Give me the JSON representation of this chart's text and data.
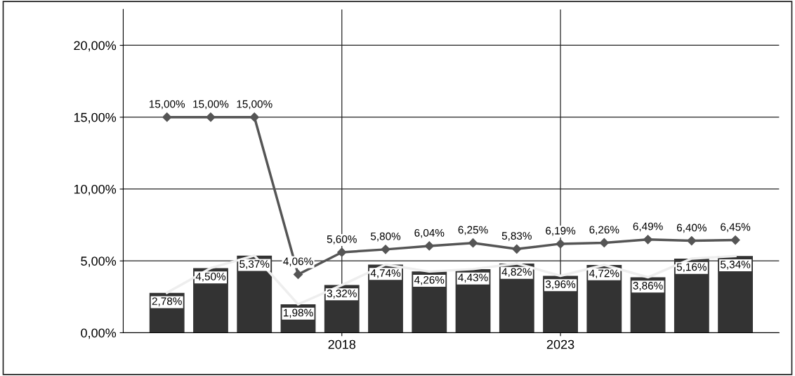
{
  "chart_data": {
    "type": "bar",
    "x": [
      2014,
      2015,
      2016,
      2017,
      2018,
      2019,
      2020,
      2021,
      2022,
      2023,
      2024,
      2025,
      2026,
      2027
    ],
    "series": [
      {
        "color": "#333333",
        "values": [
          2.78,
          4.5,
          5.37,
          1.98,
          3.32,
          4.74,
          4.26,
          4.43,
          4.82,
          3.96,
          4.72,
          3.86,
          5.16,
          5.34
        ],
        "value_labels": [
          "2,78%",
          "4,50%",
          "5,37%",
          "1,98%",
          "3,32%",
          "4,74%",
          "4,26%",
          "4,43%",
          "4,82%",
          "3,96%",
          "4,72%",
          "3,86%",
          "5,16%",
          "5,34%"
        ]
      },
      {
        "type": "line",
        "color": "#eeeeee",
        "values": [
          2.78,
          4.5,
          5.37,
          1.98,
          3.32,
          4.74,
          4.26,
          4.43,
          4.82,
          3.96,
          4.72,
          3.86,
          5.16,
          5.34
        ]
      },
      {
        "type": "line",
        "color": "#555555",
        "marker": "diamond",
        "values": [
          15.0,
          15.0,
          15.0,
          4.06,
          5.6,
          5.8,
          6.04,
          6.25,
          5.83,
          6.19,
          6.26,
          6.49,
          6.4,
          6.45
        ],
        "value_labels": [
          "15,00%",
          "15,00%",
          "15,00%",
          "4,06%",
          "5,60%",
          "5,80%",
          "6,04%",
          "6,25%",
          "5,83%",
          "6,19%",
          "6,26%",
          "6,49%",
          "6,40%",
          "6,45%"
        ]
      }
    ],
    "xlim": [
      2013,
      2028
    ],
    "xticks": [
      2018,
      2023
    ],
    "ylim": [
      0,
      22.5
    ],
    "yticks": [
      {
        "value": 0,
        "label": "0,00%"
      },
      {
        "value": 5,
        "label": "5,00%"
      },
      {
        "value": 10,
        "label": "10,00%"
      },
      {
        "value": 15,
        "label": "15,00%"
      },
      {
        "value": 20,
        "label": "20,00%"
      }
    ],
    "grid": true
  }
}
